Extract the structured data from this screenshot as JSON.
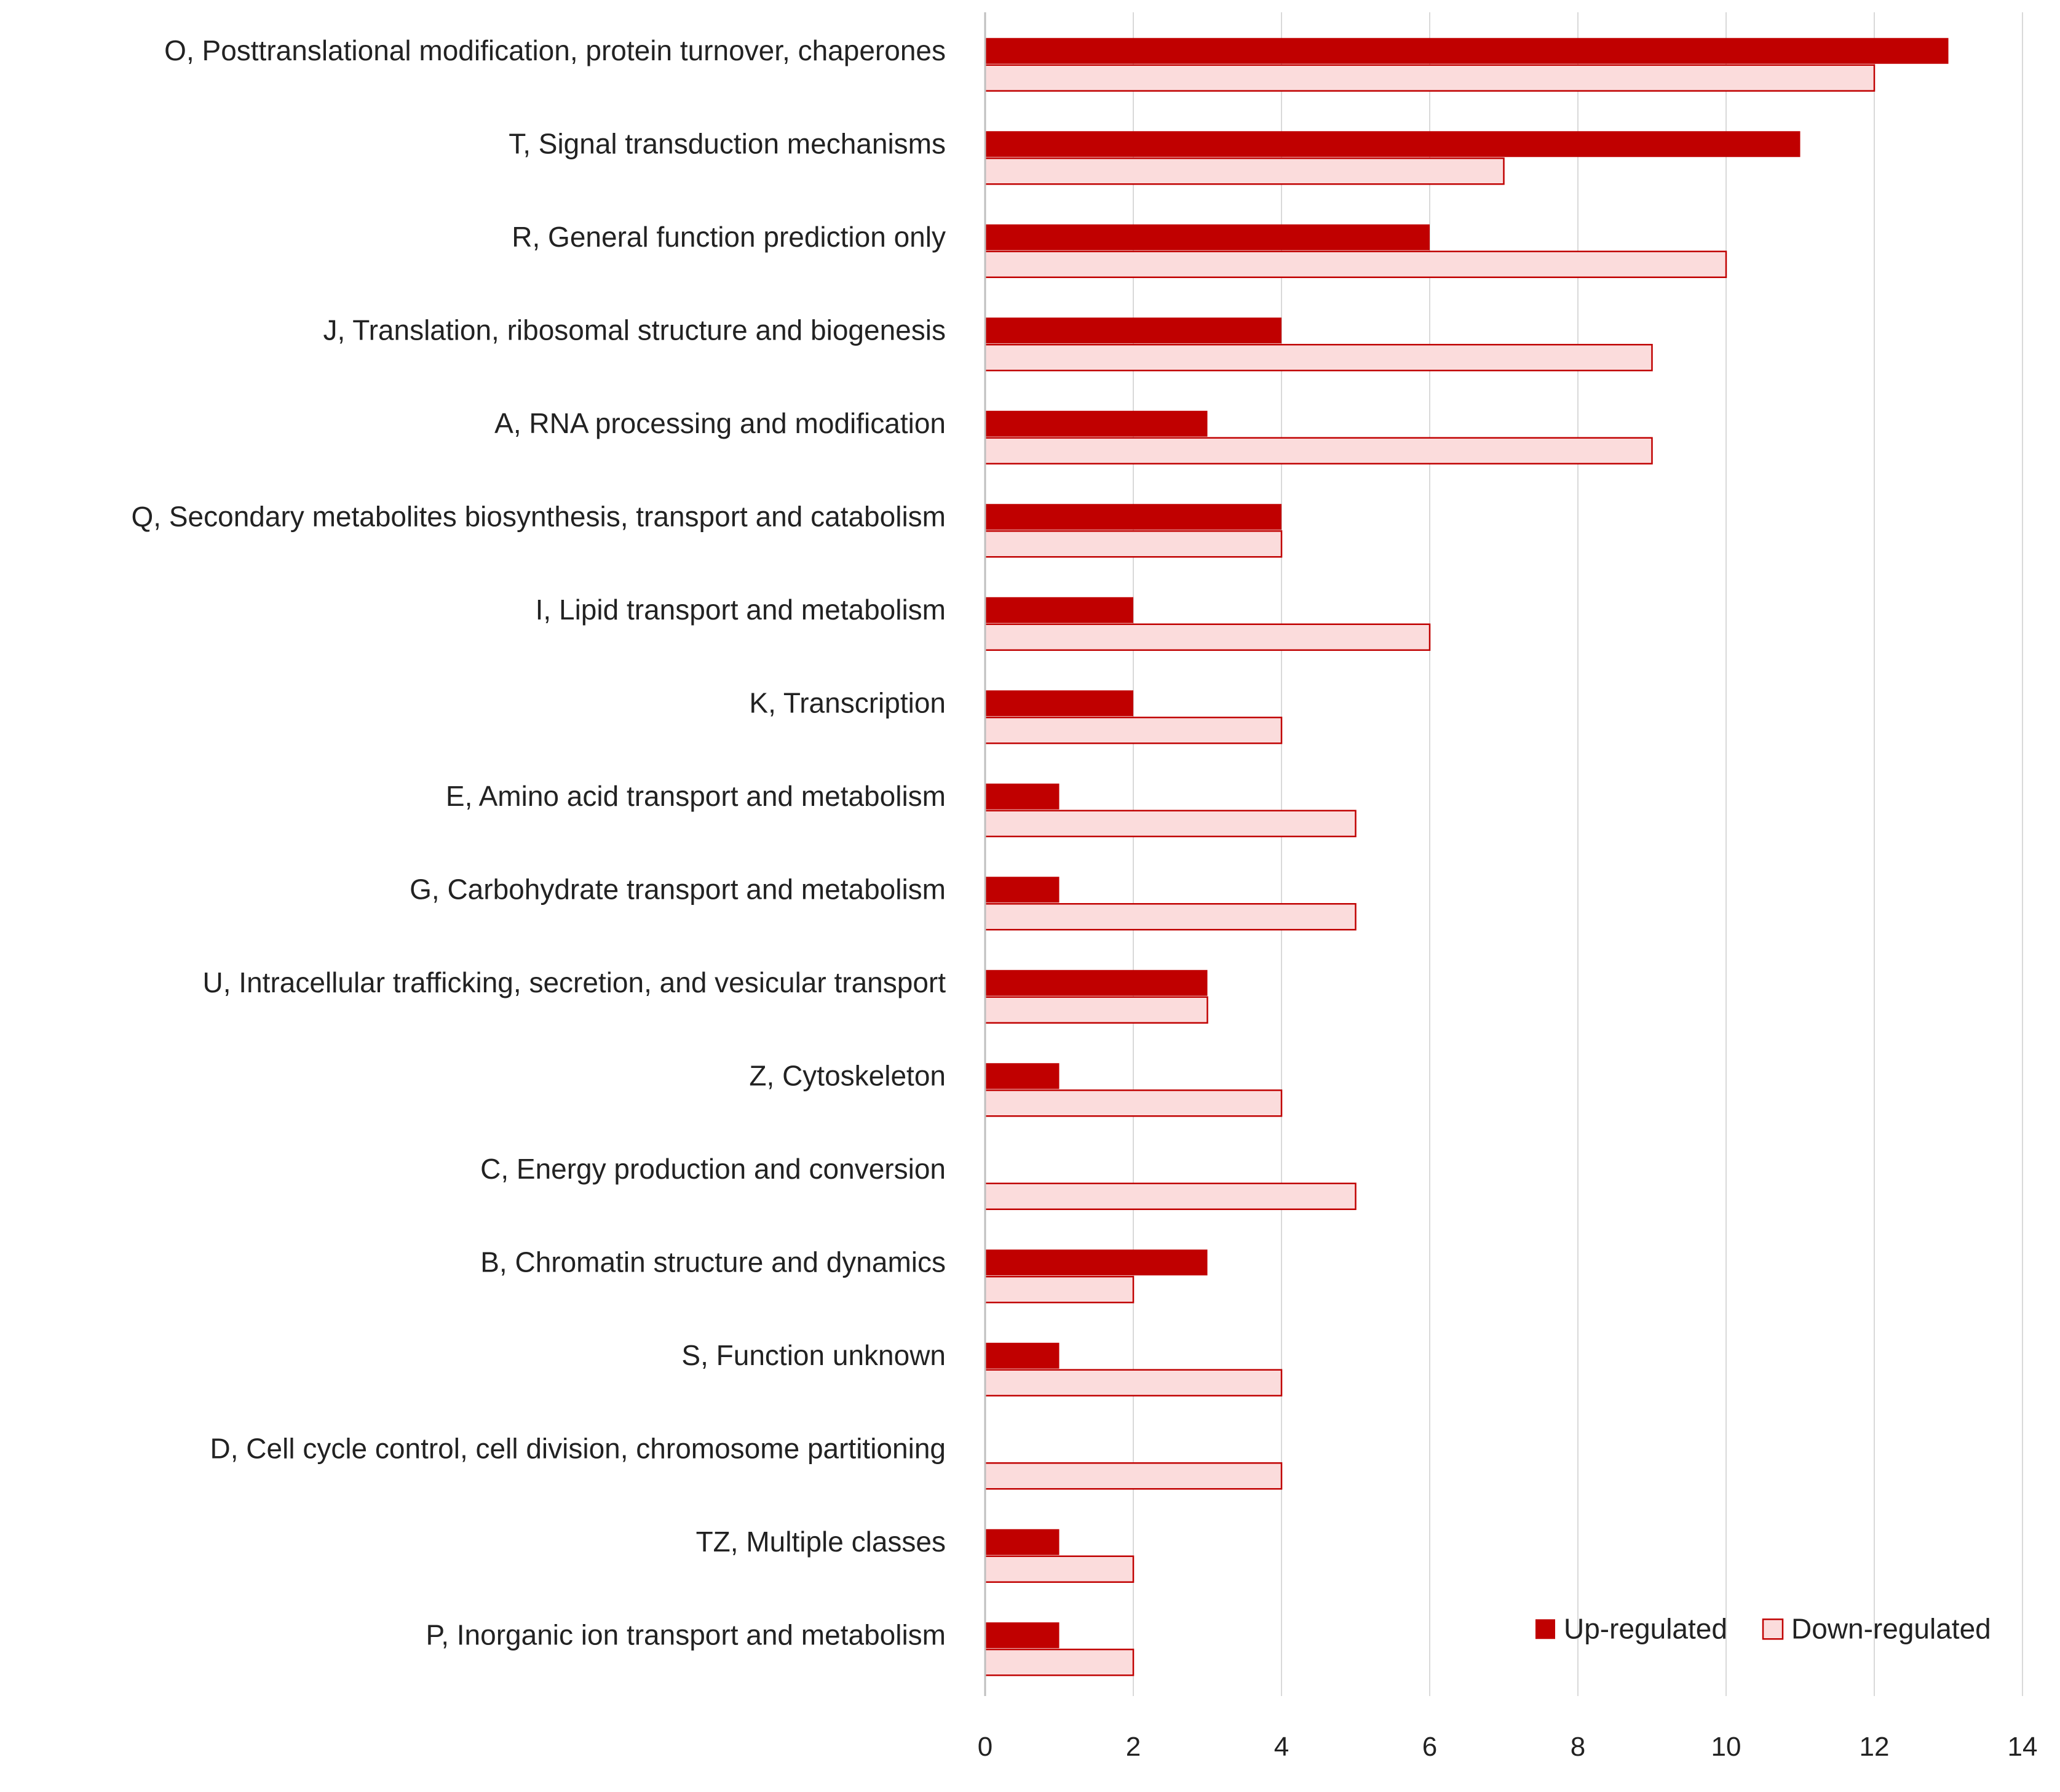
{
  "chart_data": {
    "type": "bar",
    "orientation": "horizontal",
    "title": "",
    "xlabel": "",
    "ylabel": "",
    "xlim": [
      0,
      14
    ],
    "x_ticks": [
      "0",
      "2",
      "4",
      "6",
      "8",
      "10",
      "12",
      "14"
    ],
    "grid": true,
    "legend_position": "bottom-right",
    "categories": [
      "O, Posttranslational modification, protein turnover, chaperones",
      "T, Signal transduction mechanisms",
      "R, General function prediction only",
      "J, Translation, ribosomal structure and biogenesis",
      "A, RNA processing and modification",
      "Q, Secondary metabolites biosynthesis, transport and catabolism",
      "I, Lipid transport and metabolism",
      "K, Transcription",
      "E, Amino acid transport and metabolism",
      "G, Carbohydrate transport and metabolism",
      "U, Intracellular trafficking, secretion, and vesicular transport",
      "Z, Cytoskeleton",
      "C, Energy production and conversion",
      "B, Chromatin structure and dynamics",
      "S, Function unknown",
      "D, Cell cycle control, cell division, chromosome partitioning",
      "TZ, Multiple classes",
      "P, Inorganic ion transport and metabolism"
    ],
    "series": [
      {
        "name": "Up-regulated",
        "color": "#c00000",
        "values": [
          13,
          11,
          6,
          4,
          3,
          4,
          2,
          2,
          1,
          1,
          3,
          1,
          0,
          3,
          1,
          0,
          1,
          1
        ]
      },
      {
        "name": "Down-regulated",
        "color": "#fbdcdc",
        "stroke": "#c00000",
        "values": [
          12,
          7,
          10,
          9,
          9,
          4,
          6,
          4,
          5,
          5,
          3,
          4,
          5,
          2,
          4,
          4,
          2,
          2
        ]
      }
    ],
    "colors": {
      "gridline": "#d9d9d9",
      "axis": "#bfbfbf"
    }
  }
}
